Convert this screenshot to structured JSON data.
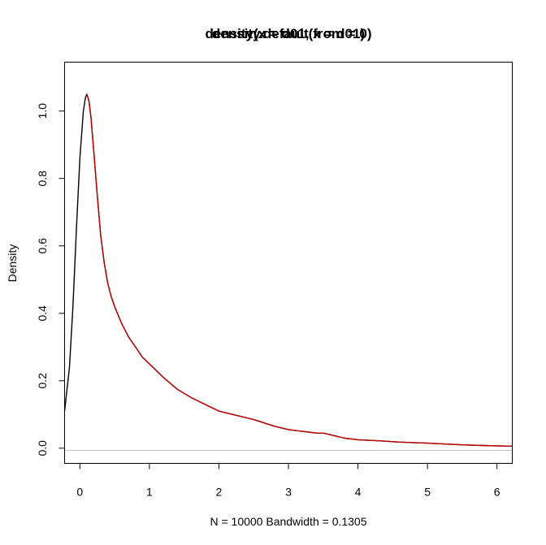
{
  "chart_data": {
    "type": "line",
    "titles": [
      "density.default(x = d01)",
      "density(x = d01, from = 0)"
    ],
    "xlabel": "N = 10000   Bandwidth = 0.1305",
    "ylabel": "Density",
    "xlim": [
      -0.22,
      6.22
    ],
    "ylim": [
      -0.045,
      1.145
    ],
    "x_ticks": [
      0,
      1,
      2,
      3,
      4,
      5,
      6
    ],
    "x_tick_labels": [
      "0",
      "1",
      "2",
      "3",
      "4",
      "5",
      "6"
    ],
    "y_ticks": [
      0.0,
      0.2,
      0.4,
      0.6,
      0.8,
      1.0
    ],
    "y_tick_labels": [
      "0.0",
      "0.2",
      "0.4",
      "0.6",
      "0.8",
      "1.0"
    ],
    "zero_line": 0,
    "series": [
      {
        "color": "#000000",
        "x": [
          -0.22,
          -0.15,
          -0.1,
          -0.05,
          0.0,
          0.05,
          0.08,
          0.1,
          0.13,
          0.16,
          0.2,
          0.25,
          0.3,
          0.35,
          0.4,
          0.45,
          0.5,
          0.6,
          0.7,
          0.8,
          0.9,
          1.0,
          1.2,
          1.4,
          1.6,
          1.8,
          2.0,
          2.2,
          2.5,
          2.8,
          3.0,
          3.2,
          3.4,
          3.5,
          3.6,
          3.8,
          4.0,
          4.3,
          4.6,
          5.0,
          5.2,
          5.5,
          5.8,
          6.0,
          6.22
        ],
        "y": [
          0.11,
          0.24,
          0.42,
          0.65,
          0.86,
          1.0,
          1.04,
          1.05,
          1.03,
          0.98,
          0.88,
          0.75,
          0.63,
          0.55,
          0.49,
          0.45,
          0.42,
          0.37,
          0.33,
          0.3,
          0.27,
          0.25,
          0.21,
          0.175,
          0.15,
          0.13,
          0.11,
          0.1,
          0.085,
          0.065,
          0.055,
          0.05,
          0.045,
          0.045,
          0.04,
          0.03,
          0.025,
          0.022,
          0.018,
          0.015,
          0.013,
          0.01,
          0.008,
          0.007,
          0.006
        ]
      },
      {
        "color": "#c00000",
        "x": [
          0.1,
          0.13,
          0.16,
          0.2,
          0.25,
          0.3,
          0.35,
          0.4,
          0.45,
          0.5,
          0.6,
          0.7,
          0.8,
          0.9,
          1.0,
          1.2,
          1.4,
          1.6,
          1.8,
          2.0,
          2.2,
          2.5,
          2.8,
          3.0,
          3.2,
          3.4,
          3.5,
          3.6,
          3.8,
          4.0,
          4.3,
          4.6,
          5.0,
          5.2,
          5.5,
          5.8,
          6.0,
          6.22
        ],
        "y": [
          1.05,
          1.03,
          0.98,
          0.88,
          0.75,
          0.63,
          0.55,
          0.49,
          0.45,
          0.42,
          0.37,
          0.33,
          0.3,
          0.27,
          0.25,
          0.21,
          0.175,
          0.15,
          0.13,
          0.11,
          0.1,
          0.085,
          0.065,
          0.055,
          0.05,
          0.045,
          0.045,
          0.04,
          0.03,
          0.025,
          0.022,
          0.018,
          0.015,
          0.013,
          0.01,
          0.008,
          0.007,
          0.006
        ]
      }
    ]
  }
}
